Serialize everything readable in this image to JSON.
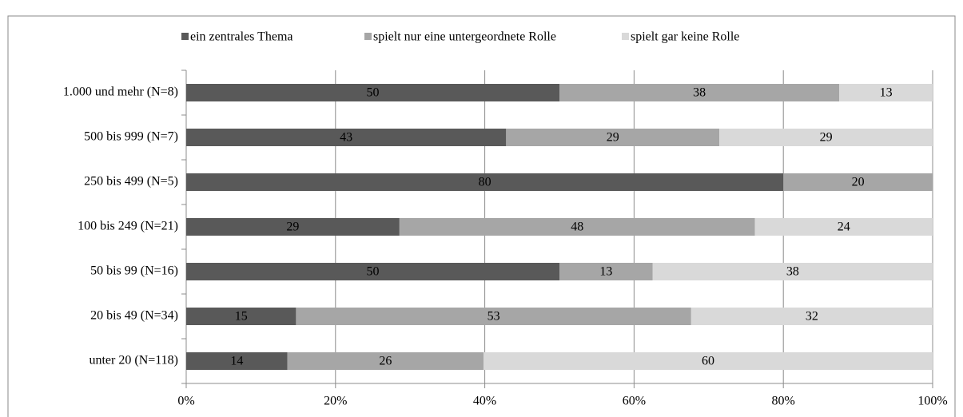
{
  "chart_data": {
    "type": "bar",
    "orientation": "horizontal",
    "stacked": true,
    "categories": [
      "1.000 und mehr (N=8)",
      "500 bis 999 (N=7)",
      "250 bis 499 (N=5)",
      "100 bis 249 (N=21)",
      "50 bis 99 (N=16)",
      "20 bis 49 (N=34)",
      "unter 20 (N=118)"
    ],
    "series": [
      {
        "name": "ein zentrales Thema",
        "color": "#595959",
        "values": [
          50,
          42.86,
          80,
          28.57,
          50,
          14.71,
          13.56
        ],
        "value_labels": [
          "50",
          "43",
          "80",
          "29",
          "50",
          "15",
          "14"
        ]
      },
      {
        "name": "spielt nur eine untergeordnete Rolle",
        "color": "#a6a6a6",
        "values": [
          37.5,
          28.57,
          20,
          47.62,
          12.5,
          52.94,
          26.27
        ],
        "value_labels": [
          "38",
          "29",
          "20",
          "48",
          "13",
          "53",
          "26"
        ]
      },
      {
        "name": "spielt gar keine Rolle",
        "color": "#d9d9d9",
        "values": [
          12.5,
          28.57,
          0,
          23.81,
          37.5,
          32.35,
          60.17
        ],
        "value_labels": [
          "13",
          "29",
          null,
          "24",
          "38",
          "32",
          "60"
        ]
      }
    ],
    "xlim": [
      0,
      100
    ],
    "xticks": [
      {
        "value": 0,
        "label": "0%"
      },
      {
        "value": 20,
        "label": "20%"
      },
      {
        "value": 40,
        "label": "40%"
      },
      {
        "value": 60,
        "label": "60%"
      },
      {
        "value": 80,
        "label": "80%"
      },
      {
        "value": 100,
        "label": "100%"
      }
    ],
    "grid": true,
    "legend": "top"
  }
}
